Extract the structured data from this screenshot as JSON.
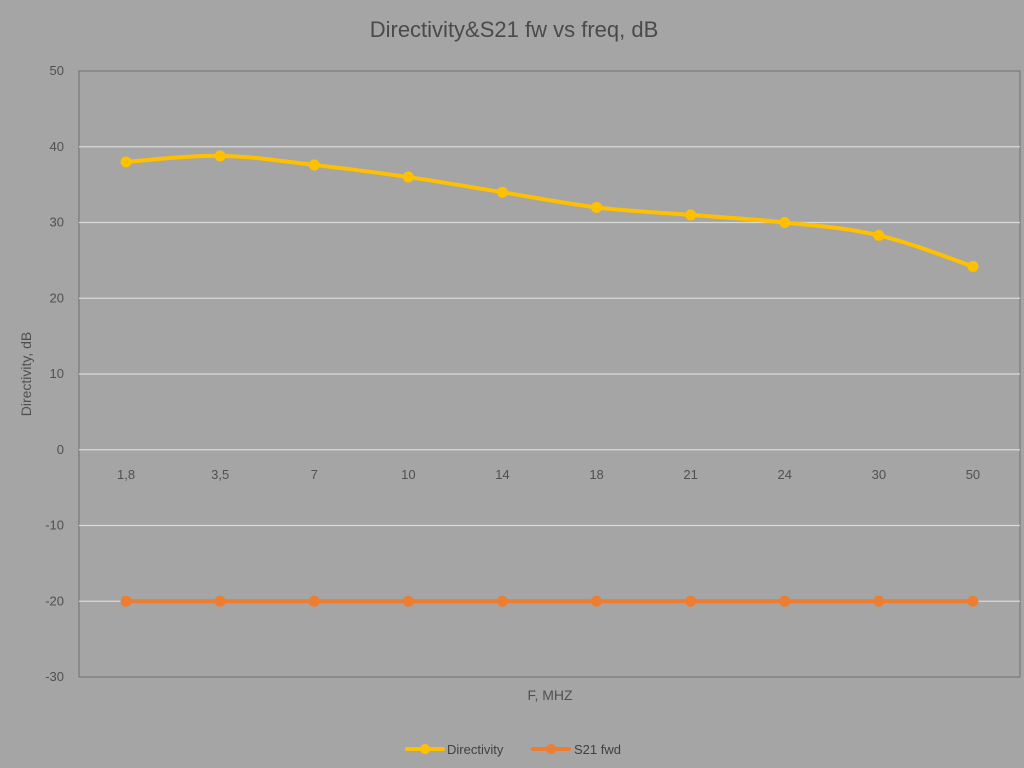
{
  "chart_data": {
    "type": "line",
    "title": "Directivity&S21 fw vs freq, dB",
    "xlabel": "F, MHZ",
    "ylabel": "Directivity, dB",
    "categories": [
      "1,8",
      "3,5",
      "7",
      "10",
      "14",
      "18",
      "21",
      "24",
      "30",
      "50"
    ],
    "ylim": [
      -30,
      50
    ],
    "yticks": [
      50,
      40,
      30,
      20,
      10,
      0,
      -10,
      -20,
      -30
    ],
    "grid": true,
    "legend_position": "bottom",
    "series": [
      {
        "name": "Directivity",
        "color": "#ffc000",
        "values": [
          38,
          38.8,
          37.6,
          36,
          34,
          32,
          31,
          30,
          28.3,
          24.2
        ]
      },
      {
        "name": "S21 fwd",
        "color": "#ed7d31",
        "values": [
          -20,
          -20,
          -20,
          -20,
          -20,
          -20,
          -20,
          -20,
          -20,
          -20
        ]
      }
    ]
  }
}
